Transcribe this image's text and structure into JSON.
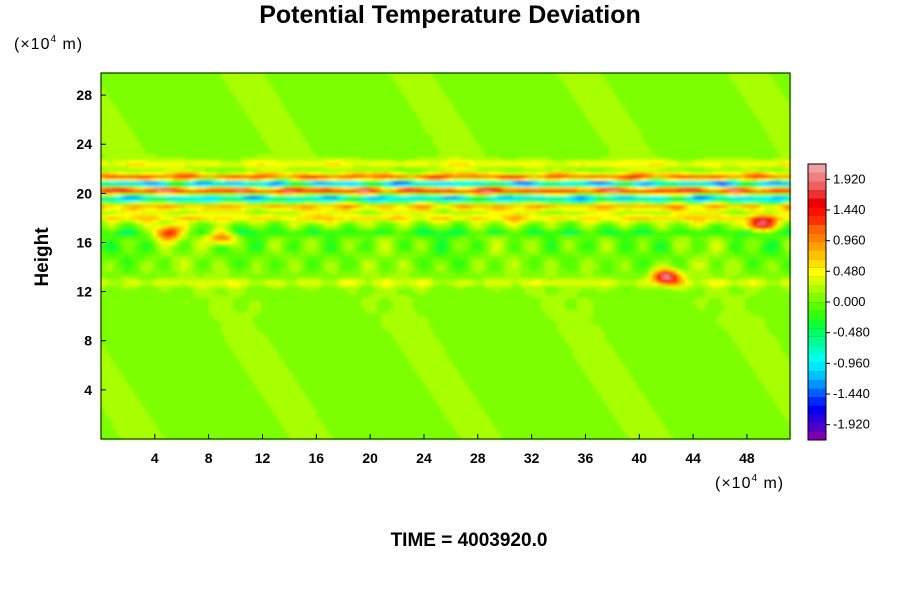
{
  "chart_data": {
    "type": "heatmap",
    "title": "Potential Temperature Deviation",
    "ylabel": "Height",
    "y_unit": "(×10⁴ m)",
    "x_unit": "(×10⁴ m)",
    "xlim": [
      0,
      51.2
    ],
    "ylim": [
      0,
      29.8
    ],
    "x_ticks": [
      "4",
      "8",
      "12",
      "16",
      "20",
      "24",
      "28",
      "32",
      "36",
      "40",
      "44",
      "48"
    ],
    "y_ticks": [
      "4",
      "8",
      "12",
      "16",
      "20",
      "24",
      "28"
    ],
    "colorbar": {
      "range": [
        -2.16,
        2.16
      ],
      "tick_labels": [
        "1.920",
        "1.440",
        "0.960",
        "0.480",
        "0.000",
        "-0.480",
        "-0.960",
        "-1.440",
        "-1.920"
      ],
      "colors": [
        "#7a00b0",
        "#5000c8",
        "#2a00dc",
        "#0000f0",
        "#0028ff",
        "#0060ff",
        "#0096ff",
        "#00c4ff",
        "#00e8ff",
        "#00ffee",
        "#00ffc0",
        "#00ff90",
        "#00ff60",
        "#10ff30",
        "#30ff10",
        "#58ff00",
        "#7cff00",
        "#a8ff00",
        "#d8ff00",
        "#ffff00",
        "#ffe000",
        "#ffc000",
        "#ffa000",
        "#ff8000",
        "#ff6000",
        "#ff3000",
        "#ff1000",
        "#ee0000",
        "#ee3030",
        "#f06060",
        "#f08080",
        "#f0a0a0"
      ]
    },
    "background_value": 0.1,
    "layers": [
      {
        "y": 22.4,
        "amplitude": 0.5
      },
      {
        "y": 21.3,
        "amplitude": 1.6
      },
      {
        "y": 20.8,
        "amplitude": -1.9
      },
      {
        "y": 20.2,
        "amplitude": 2.0
      },
      {
        "y": 19.6,
        "amplitude": -1.6
      },
      {
        "y": 18.9,
        "amplitude": 0.9
      },
      {
        "y": 18.0,
        "amplitude": 0.7
      },
      {
        "y": 16.8,
        "amplitude": -0.4
      },
      {
        "y": 12.7,
        "amplitude": 0.35
      }
    ],
    "hotspots": [
      {
        "x": 5,
        "y": 16.8,
        "value": 1.7
      },
      {
        "x": 9,
        "y": 16.4,
        "value": 1.2
      },
      {
        "x": 42,
        "y": 13.2,
        "value": 1.9
      },
      {
        "x": 49,
        "y": 17.5,
        "value": 1.9
      }
    ]
  },
  "footer": {
    "time_label": "TIME = 4003920.0"
  }
}
